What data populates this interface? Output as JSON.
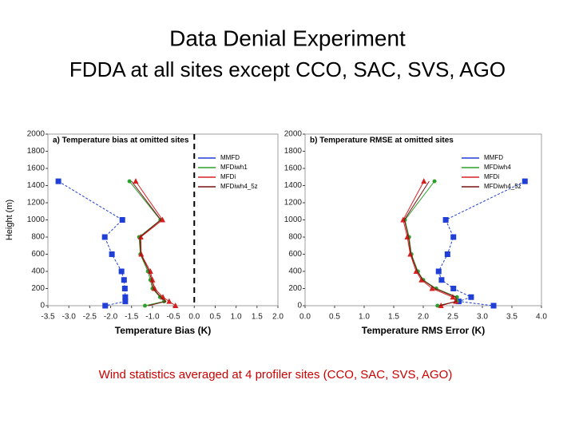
{
  "title": "Data Denial Experiment",
  "subtitle": "FDDA at all sites except CCO, SAC, SVS, AGO",
  "footer": "Wind statistics averaged at 4 profiler sites (CCO, SAC, SVS, AGO)",
  "chart_data": [
    {
      "type": "line",
      "title": "a) Temperature bias at omitted sites",
      "xlabel": "Temperature Bias (K)",
      "ylabel": "Height (m)",
      "xlim": [
        -3.5,
        2.0
      ],
      "ylim": [
        0,
        2000
      ],
      "xticks": [
        -3.5,
        {
          "value": -3,
          "label": "-3.0"
        },
        -2.5,
        {
          "value": -2,
          "label": "-2.0"
        },
        -1.5,
        {
          "value": -1,
          "label": "-1.0"
        },
        -0.5,
        {
          "value": 0,
          "label": "0.0"
        },
        0.5,
        {
          "value": 1,
          "label": "1.0"
        },
        1.5,
        {
          "value": 2,
          "label": "2.0"
        }
      ],
      "yticks": [
        0,
        200,
        400,
        600,
        800,
        1000,
        1200,
        1400,
        1600,
        1800,
        2000
      ],
      "vline": 0,
      "legend": "upper right",
      "series": [
        {
          "name": "MMFD",
          "color": "#1f3fd6",
          "marker": "square",
          "heights": [
            1450,
            1000,
            800,
            600,
            400,
            300,
            200,
            100,
            50,
            0
          ],
          "values": [
            -3.25,
            -1.72,
            -2.14,
            -1.97,
            -1.74,
            -1.68,
            -1.66,
            -1.65,
            -1.65,
            -2.13
          ]
        },
        {
          "name": "MFDiwh1",
          "color": "#2ca02c",
          "marker": "circle",
          "heights": [
            1450,
            1000,
            800,
            600,
            400,
            300,
            200,
            100,
            50,
            0
          ],
          "values": [
            -1.55,
            -0.81,
            -1.32,
            -1.29,
            -1.11,
            -1.05,
            -1.0,
            -0.82,
            -0.72,
            -1.18
          ]
        },
        {
          "name": "MFDi",
          "color": "#d62020",
          "marker": "triangle",
          "heights": [
            1450,
            1000,
            800,
            600,
            400,
            300,
            200,
            100,
            50,
            0
          ],
          "values": [
            -1.4,
            -0.76,
            -1.28,
            -1.27,
            -1.05,
            -1.0,
            -0.95,
            -0.75,
            -0.6,
            -0.45
          ]
        },
        {
          "name": "MFDiwh4_5z",
          "color": "#7a1010",
          "marker": "none",
          "heights": [
            1450,
            1000,
            800,
            600,
            400,
            300,
            200,
            100,
            50,
            0
          ],
          "values": [
            -1.5,
            -0.8,
            -1.3,
            -1.28,
            -1.08,
            -1.02,
            -0.98,
            -0.8,
            -0.68,
            -1.1
          ]
        }
      ]
    },
    {
      "type": "line",
      "title": "b) Temperature RMSE at omitted sites",
      "xlabel": "Temperature RMS Error (K)",
      "xlim": [
        0,
        4
      ],
      "ylim": [
        0,
        2000
      ],
      "xticks": [
        {
          "value": 0,
          "label": "0.0"
        },
        0.5,
        {
          "value": 1,
          "label": "1.0"
        },
        1.5,
        {
          "value": 2,
          "label": "2.0"
        },
        2.5,
        {
          "value": 3,
          "label": "3.0"
        },
        3.5,
        {
          "value": 4,
          "label": "4.0"
        }
      ],
      "yticks": [
        0,
        200,
        400,
        600,
        800,
        1000,
        1200,
        1400,
        1600,
        1800,
        2000
      ],
      "legend": "upper right",
      "series": [
        {
          "name": "MMFD",
          "color": "#1f3fd6",
          "marker": "square",
          "heights": [
            1450,
            1000,
            800,
            600,
            400,
            300,
            200,
            100,
            50,
            0
          ],
          "values": [
            3.72,
            2.38,
            2.51,
            2.41,
            2.26,
            2.31,
            2.51,
            2.81,
            2.6,
            3.19
          ]
        },
        {
          "name": "MFDiwh4",
          "color": "#2ca02c",
          "marker": "circle",
          "heights": [
            1450,
            1000,
            800,
            600,
            400,
            300,
            200,
            100,
            50,
            0
          ],
          "values": [
            2.19,
            1.69,
            1.76,
            1.8,
            1.91,
            2.0,
            2.22,
            2.57,
            2.57,
            2.24
          ]
        },
        {
          "name": "MFDi",
          "color": "#d62020",
          "marker": "triangle",
          "heights": [
            1450,
            1000,
            800,
            600,
            400,
            300,
            200,
            100,
            50,
            0
          ],
          "values": [
            2.01,
            1.66,
            1.73,
            1.78,
            1.88,
            1.97,
            2.15,
            2.5,
            2.55,
            2.3
          ]
        },
        {
          "name": "MFDiwh4_5z",
          "color": "#7a1010",
          "marker": "none",
          "heights": [
            1450,
            1000,
            800,
            600,
            400,
            300,
            200,
            100,
            50,
            0
          ],
          "values": [
            2.1,
            1.68,
            1.75,
            1.79,
            1.9,
            1.99,
            2.2,
            2.55,
            2.56,
            2.27
          ]
        }
      ]
    }
  ]
}
